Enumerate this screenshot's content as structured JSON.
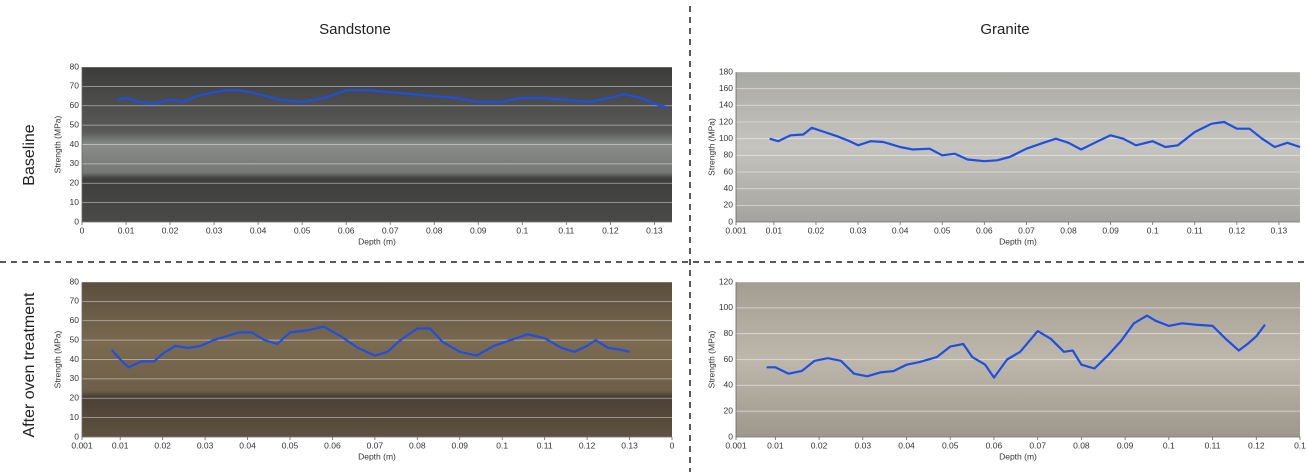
{
  "columns": [
    "Sandstone",
    "Granite"
  ],
  "rows": [
    "Baseline",
    "After oven treatment"
  ],
  "chart_data": [
    {
      "type": "line",
      "xlabel": "Depth (m)",
      "ylabel": "Strength (MPa)",
      "grid": true,
      "xlim": [
        0,
        0.134
      ],
      "ylim": [
        0,
        80
      ],
      "xticks": [
        0,
        0.01,
        0.02,
        0.03,
        0.04,
        0.05,
        0.06,
        0.07,
        0.08,
        0.09,
        0.1,
        0.11,
        0.12,
        0.13
      ],
      "yticks": [
        0,
        10,
        20,
        30,
        40,
        50,
        60,
        70,
        80
      ],
      "x": [
        0.008,
        0.01,
        0.013,
        0.016,
        0.02,
        0.023,
        0.026,
        0.03,
        0.033,
        0.036,
        0.04,
        0.045,
        0.05,
        0.055,
        0.06,
        0.065,
        0.07,
        0.075,
        0.08,
        0.085,
        0.09,
        0.095,
        0.1,
        0.105,
        0.11,
        0.115,
        0.12,
        0.123,
        0.127,
        0.13,
        0.133
      ],
      "series": [
        {
          "color": "#1f4fe0",
          "values": [
            63,
            64,
            62,
            61,
            63,
            62,
            65,
            67,
            68,
            68,
            66,
            63,
            62,
            64,
            68,
            68,
            67,
            66,
            65,
            64,
            62,
            62,
            64,
            64,
            63,
            62,
            64,
            66,
            64,
            61,
            59
          ]
        }
      ]
    },
    {
      "type": "line",
      "xlabel": "Depth (m)",
      "ylabel": "Strength (MPa)",
      "grid": true,
      "xlim": [
        0.001,
        0.135
      ],
      "ylim": [
        0,
        180
      ],
      "xticks": [
        0.001,
        0.01,
        0.02,
        0.03,
        0.04,
        0.05,
        0.06,
        0.07,
        0.08,
        0.09,
        0.1,
        0.11,
        0.12,
        0.13
      ],
      "yticks": [
        0,
        20,
        40,
        60,
        80,
        100,
        120,
        140,
        160,
        180
      ],
      "x": [
        0.009,
        0.011,
        0.014,
        0.017,
        0.019,
        0.022,
        0.025,
        0.028,
        0.03,
        0.033,
        0.036,
        0.04,
        0.043,
        0.047,
        0.05,
        0.053,
        0.056,
        0.06,
        0.063,
        0.066,
        0.07,
        0.074,
        0.077,
        0.08,
        0.083,
        0.087,
        0.09,
        0.093,
        0.096,
        0.1,
        0.103,
        0.106,
        0.11,
        0.114,
        0.117,
        0.12,
        0.123,
        0.126,
        0.129,
        0.132,
        0.135
      ],
      "series": [
        {
          "color": "#1f4fe0",
          "values": [
            100,
            97,
            104,
            105,
            113,
            108,
            103,
            97,
            92,
            97,
            96,
            90,
            87,
            88,
            80,
            82,
            75,
            73,
            74,
            78,
            88,
            95,
            100,
            95,
            87,
            97,
            104,
            100,
            92,
            97,
            90,
            92,
            108,
            118,
            120,
            112,
            112,
            100,
            90,
            95,
            90
          ]
        }
      ]
    },
    {
      "type": "line",
      "xlabel": "Depth (m)",
      "ylabel": "Strength (MPa)",
      "grid": true,
      "xlim": [
        0.001,
        0.14
      ],
      "ylim": [
        0,
        80
      ],
      "xticks": [
        0.001,
        0.01,
        0.02,
        0.03,
        0.04,
        0.05,
        0.06,
        0.07,
        0.08,
        0.09,
        0.1,
        0.11,
        0.12,
        0.13,
        {
          "value": 0.14,
          "label": "0"
        }
      ],
      "yticks": [
        0,
        10,
        20,
        30,
        40,
        50,
        60,
        70,
        80
      ],
      "x": [
        0.008,
        0.01,
        0.012,
        0.015,
        0.018,
        0.02,
        0.023,
        0.026,
        0.029,
        0.032,
        0.035,
        0.038,
        0.041,
        0.044,
        0.047,
        0.05,
        0.054,
        0.058,
        0.062,
        0.066,
        0.07,
        0.073,
        0.076,
        0.08,
        0.083,
        0.086,
        0.09,
        0.094,
        0.098,
        0.102,
        0.106,
        0.11,
        0.114,
        0.117,
        0.12,
        0.122,
        0.125,
        0.128,
        0.13
      ],
      "series": [
        {
          "color": "#1f4fe0",
          "values": [
            45,
            40,
            36,
            39,
            39,
            43,
            47,
            46,
            47,
            50,
            52,
            54,
            54,
            50,
            48,
            54,
            55,
            57,
            52,
            46,
            42,
            44,
            50,
            56,
            56,
            49,
            44,
            42,
            47,
            50,
            53,
            51,
            46,
            44,
            47,
            50,
            46,
            45,
            44
          ]
        }
      ]
    },
    {
      "type": "line",
      "xlabel": "Depth (m)",
      "ylabel": "Strength (MPa)",
      "grid": true,
      "xlim": [
        0.001,
        0.13
      ],
      "ylim": [
        0,
        120
      ],
      "xticks": [
        0.001,
        0.01,
        0.02,
        0.03,
        0.04,
        0.05,
        0.06,
        0.07,
        0.08,
        0.09,
        0.1,
        0.11,
        0.12,
        {
          "value": 0.13,
          "label": "0.1"
        }
      ],
      "yticks": [
        0,
        20,
        40,
        60,
        80,
        100,
        120
      ],
      "x": [
        0.008,
        0.01,
        0.013,
        0.016,
        0.019,
        0.022,
        0.025,
        0.028,
        0.031,
        0.034,
        0.037,
        0.04,
        0.043,
        0.047,
        0.05,
        0.053,
        0.055,
        0.058,
        0.06,
        0.063,
        0.066,
        0.07,
        0.073,
        0.076,
        0.078,
        0.08,
        0.083,
        0.086,
        0.089,
        0.092,
        0.095,
        0.097,
        0.1,
        0.103,
        0.106,
        0.11,
        0.113,
        0.116,
        0.118,
        0.12,
        0.122
      ],
      "series": [
        {
          "color": "#1f4fe0",
          "values": [
            54,
            54,
            49,
            51,
            59,
            61,
            59,
            49,
            47,
            50,
            51,
            56,
            58,
            62,
            70,
            72,
            62,
            56,
            46,
            60,
            66,
            82,
            76,
            66,
            67,
            56,
            53,
            63,
            74,
            88,
            94,
            90,
            86,
            88,
            87,
            86,
            76,
            67,
            72,
            78,
            87
          ]
        }
      ]
    }
  ]
}
